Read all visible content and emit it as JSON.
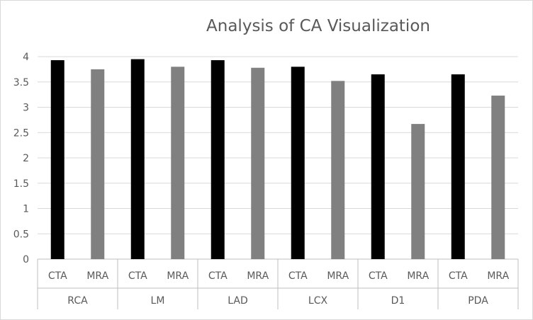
{
  "chart_data": {
    "type": "bar",
    "title": "Analysis of CA Visualization",
    "xlabel": "",
    "ylabel": "",
    "ylim": [
      0,
      4
    ],
    "yticks": [
      "0",
      "0.5",
      "1",
      "1.5",
      "2",
      "2.5",
      "3",
      "3.5",
      "4"
    ],
    "ytick_values": [
      0,
      0.5,
      1,
      1.5,
      2,
      2.5,
      3,
      3.5,
      4
    ],
    "grid": true,
    "legend": "none",
    "groups": [
      {
        "label": "RCA",
        "bars": [
          {
            "label": "CTA",
            "value": 3.93
          },
          {
            "label": "MRA",
            "value": 3.75
          }
        ]
      },
      {
        "label": "LM",
        "bars": [
          {
            "label": "CTA",
            "value": 3.95
          },
          {
            "label": "MRA",
            "value": 3.8
          }
        ]
      },
      {
        "label": "LAD",
        "bars": [
          {
            "label": "CTA",
            "value": 3.93
          },
          {
            "label": "MRA",
            "value": 3.78
          }
        ]
      },
      {
        "label": "LCX",
        "bars": [
          {
            "label": "CTA",
            "value": 3.8
          },
          {
            "label": "MRA",
            "value": 3.52
          }
        ]
      },
      {
        "label": "D1",
        "bars": [
          {
            "label": "CTA",
            "value": 3.65
          },
          {
            "label": "MRA",
            "value": 2.67
          }
        ]
      },
      {
        "label": "PDA",
        "bars": [
          {
            "label": "CTA",
            "value": 3.65
          },
          {
            "label": "MRA",
            "value": 3.23
          }
        ]
      }
    ],
    "colors": {
      "CTA": "#000000",
      "MRA": "#808080",
      "gridline": "#d9d9d9",
      "axis": "#bfbfbf",
      "text": "#595959"
    }
  }
}
